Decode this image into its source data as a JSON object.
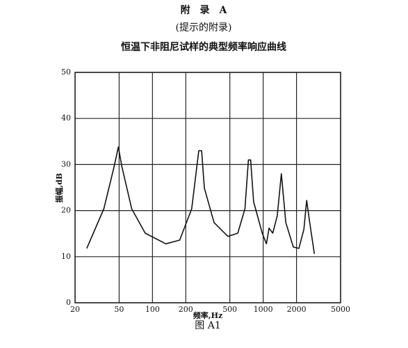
{
  "appendix": "附　录　A",
  "note": "(提示的附录)",
  "figure": "图 A1",
  "chart_data": {
    "type": "line",
    "title": "恒温下非阻尼试样的典型频率响应曲线",
    "xlabel": "频率,Hz",
    "ylabel": "振幅,dB",
    "log_x": true,
    "grid": true,
    "color": "#111",
    "xlim": [
      20,
      5000
    ],
    "ylim": [
      0,
      50
    ],
    "xticks": [
      20,
      50,
      100,
      200,
      500,
      1000,
      2000,
      5000
    ],
    "yticks": [
      0,
      10,
      20,
      30,
      40,
      50
    ],
    "x": [
      25.5,
      36.4,
      45,
      49.2,
      53,
      65,
      86,
      132,
      176,
      226,
      262,
      278,
      294,
      360,
      480,
      590,
      684,
      735,
      770,
      820,
      980,
      1070,
      1130,
      1220,
      1340,
      1460,
      1600,
      1870,
      2100,
      2330,
      2470,
      2630,
      2900
    ],
    "values": [
      11.8,
      20.4,
      29.5,
      33.8,
      29.5,
      20.4,
      15.1,
      12.8,
      13.6,
      20.4,
      33,
      33,
      24.9,
      17.4,
      14.4,
      15.1,
      20.4,
      31,
      31,
      21.9,
      15.1,
      12.8,
      16.2,
      15.1,
      18.9,
      28,
      17.4,
      12.1,
      11.8,
      15.9,
      22.2,
      17.4,
      10.6
    ]
  }
}
